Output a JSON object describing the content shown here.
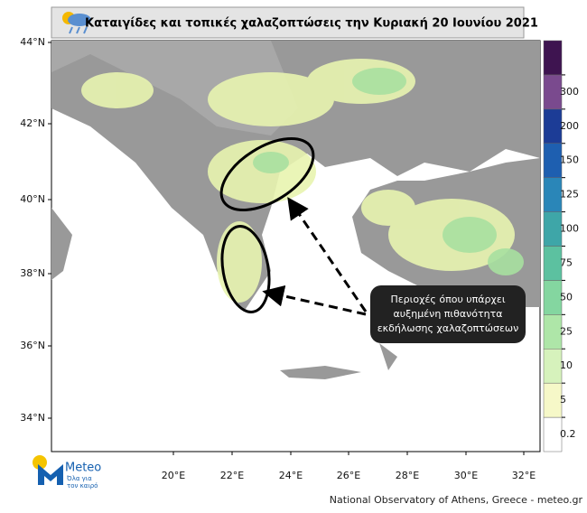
{
  "header": {
    "title": "Καταιγίδες και τοπικές χαλαζοπτώσεις την Κυριακή 20 Ιουνίου 2021"
  },
  "map": {
    "lat_ticks": [
      "44°N",
      "42°N",
      "40°N",
      "38°N",
      "36°N",
      "34°N"
    ],
    "lon_ticks": [
      "20°E",
      "22°E",
      "24°E",
      "26°E",
      "28°E",
      "30°E",
      "32°E"
    ]
  },
  "colorbar": {
    "levels": [
      0.2,
      5,
      10,
      25,
      50,
      75,
      100,
      125,
      150,
      200,
      300
    ],
    "colors": [
      "#ffffff",
      "#f6f8c8",
      "#d6f2bc",
      "#aee6a8",
      "#84d6a0",
      "#5cc1a0",
      "#3ea6a8",
      "#2a86b8",
      "#1e5fb0",
      "#1c3c96",
      "#7a4a8e",
      "#3e1450"
    ]
  },
  "annotation": {
    "lines": [
      "Περιοχές όπου υπάρχει",
      "αυξημένη πιθανότητα",
      "εκδήλωσης χαλαζοπτώσεων"
    ]
  },
  "logo": {
    "name": "Meteo",
    "tagline": [
      "Όλα για",
      "τον καιρό"
    ]
  },
  "footer": "National Observatory of Athens, Greece - meteo.gr"
}
